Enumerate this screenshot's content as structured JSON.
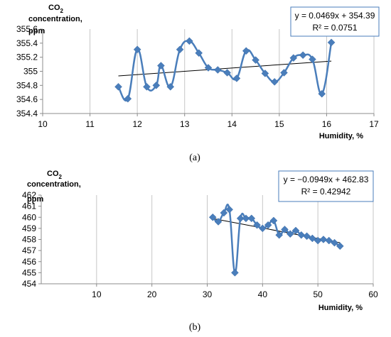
{
  "chart_data": [
    {
      "type": "line",
      "panel_label": "(a)",
      "ylabel_line1": "CO",
      "ylabel_sub": "2",
      "ylabel_line2": "concentration,",
      "ylabel_line3": "ppm",
      "xlabel": "Humidity, %",
      "xlim": [
        10,
        17
      ],
      "ylim": [
        354.4,
        355.6
      ],
      "xticks": [
        10,
        11,
        12,
        13,
        14,
        15,
        16,
        17
      ],
      "yticks": [
        354.4,
        354.6,
        354.8,
        355,
        355.2,
        355.4,
        355.6
      ],
      "ytick_labels": [
        "354.4",
        "354.6",
        "354.8",
        "355",
        "355.2",
        "355.4",
        "355.6"
      ],
      "grid": "vertical",
      "series_color": "#4a7ebb",
      "trend_color": "#000000",
      "x": [
        11.6,
        11.8,
        12.0,
        12.2,
        12.4,
        12.5,
        12.7,
        12.9,
        13.1,
        13.3,
        13.5,
        13.7,
        13.9,
        14.1,
        14.3,
        14.5,
        14.7,
        14.9,
        15.1,
        15.3,
        15.5,
        15.7,
        15.9,
        16.1
      ],
      "y": [
        354.78,
        354.61,
        355.31,
        354.78,
        354.8,
        355.08,
        354.78,
        355.31,
        355.43,
        355.26,
        355.05,
        355.02,
        354.98,
        354.9,
        355.29,
        355.16,
        354.97,
        354.85,
        354.98,
        355.19,
        355.23,
        355.17,
        354.68,
        355.41
      ],
      "trendline": {
        "slope": 0.0469,
        "intercept": 354.39,
        "x_range": [
          11.6,
          16.1
        ]
      },
      "equation": "y = 0.0469x + 354.39",
      "r2": "R² = 0.0751"
    },
    {
      "type": "line",
      "panel_label": "(b)",
      "ylabel_line1": "CO",
      "ylabel_sub": "2",
      "ylabel_line2": "concentration,",
      "ylabel_line3": "ppm",
      "xlabel": "Humidity, %",
      "xlim": [
        0,
        60
      ],
      "ylim": [
        454,
        462
      ],
      "xticks": [
        10,
        20,
        30,
        40,
        50,
        60
      ],
      "yticks": [
        454,
        455,
        456,
        457,
        458,
        459,
        460,
        461,
        462
      ],
      "ytick_labels": [
        "454",
        "455",
        "456",
        "457",
        "458",
        "459",
        "460",
        "461",
        "462"
      ],
      "grid": "vertical",
      "series_color": "#4a7ebb",
      "trend_color": "#000000",
      "x": [
        31,
        32,
        33,
        34,
        35,
        36,
        37,
        38,
        39,
        40,
        41,
        42,
        43,
        44,
        45,
        46,
        47,
        48,
        49,
        50,
        51,
        52,
        53,
        54
      ],
      "y": [
        460.0,
        459.6,
        460.4,
        460.7,
        455.0,
        459.9,
        459.9,
        459.9,
        459.3,
        459.0,
        459.3,
        459.7,
        458.4,
        458.9,
        458.5,
        458.8,
        458.4,
        458.3,
        458.1,
        457.9,
        458.0,
        457.9,
        457.7,
        457.4
      ],
      "trendline": {
        "slope": -0.0949,
        "intercept": 462.83,
        "x_range": [
          31,
          54
        ]
      },
      "equation": "y = −0.0949x + 462.83",
      "r2": "R² = 0.42942"
    }
  ]
}
